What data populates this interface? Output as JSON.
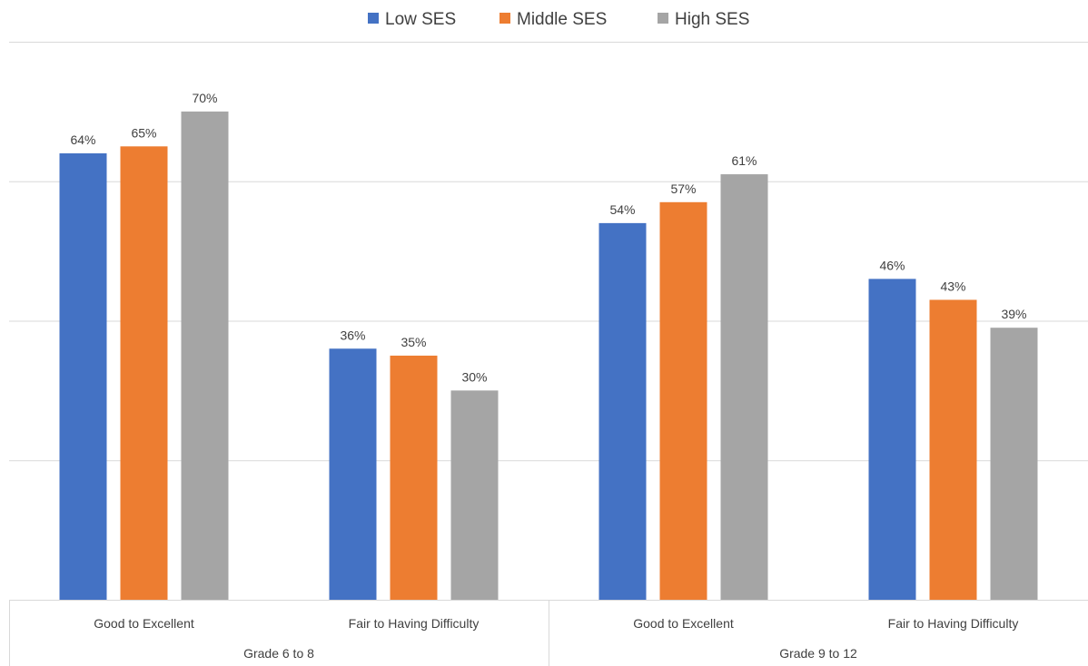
{
  "chart_data": {
    "type": "bar",
    "groups": [
      "Grade 6 to 8",
      "Grade 9 to 12"
    ],
    "categories": [
      "Good to Excellent",
      "Fair to Having Difficulty",
      "Good to Excellent",
      "Fair to Having Difficulty"
    ],
    "series": [
      {
        "name": "Low SES",
        "color": "#4472c4",
        "values": [
          64,
          36,
          54,
          46
        ]
      },
      {
        "name": "Middle SES",
        "color": "#ed7d31",
        "values": [
          65,
          35,
          57,
          43
        ]
      },
      {
        "name": "High SES",
        "color": "#a5a5a5",
        "values": [
          70,
          30,
          61,
          39
        ]
      }
    ],
    "value_suffix": "%",
    "ylim": [
      0,
      80
    ],
    "y_gridlines": [
      20,
      40,
      60,
      80
    ],
    "grid": true,
    "legend_position": "top-center",
    "y_tick_labels_shown": false
  }
}
